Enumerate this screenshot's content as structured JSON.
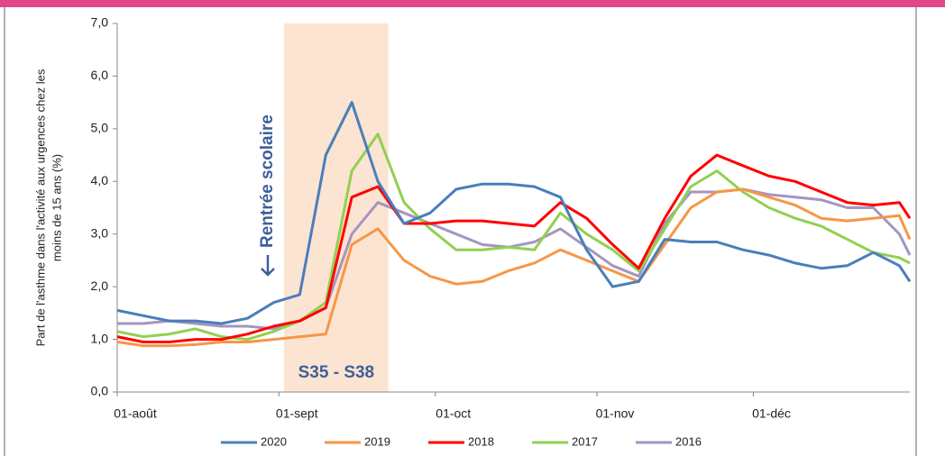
{
  "chart_data": {
    "type": "line",
    "ylabel": [
      "Part de l'asthme dans l'activité  aux urgences chez les",
      "moins de 15 ans (%)"
    ],
    "annotations": [
      "Rentrée scolaire",
      "S35 - S38"
    ],
    "shade": [
      32,
      52
    ],
    "x": [
      0,
      5,
      10,
      15,
      20,
      25,
      30,
      35,
      40,
      45,
      50,
      55,
      60,
      65,
      70,
      75,
      80,
      85,
      90,
      95,
      100,
      105,
      110,
      115,
      120,
      125,
      130,
      135,
      140,
      145,
      150,
      152
    ],
    "xlim": [
      0,
      152
    ],
    "xticks": [
      {
        "value": 0,
        "label": "01-août"
      },
      {
        "value": 31,
        "label": "01-sept"
      },
      {
        "value": 61,
        "label": "01-oct"
      },
      {
        "value": 92,
        "label": "01-nov"
      },
      {
        "value": 122,
        "label": "01-déc"
      }
    ],
    "ylim": [
      0,
      7
    ],
    "yticks": [
      {
        "value": 0,
        "label": "0,0"
      },
      {
        "value": 1,
        "label": "1,0"
      },
      {
        "value": 2,
        "label": "2,0"
      },
      {
        "value": 3,
        "label": "3,0"
      },
      {
        "value": 4,
        "label": "4,0"
      },
      {
        "value": 5,
        "label": "5,0"
      },
      {
        "value": 6,
        "label": "6,0"
      },
      {
        "value": 7,
        "label": "7,0"
      }
    ],
    "series": [
      {
        "name": "2020",
        "color": "#4a7ebb",
        "values": [
          1.55,
          1.45,
          1.35,
          1.35,
          1.3,
          1.4,
          1.7,
          1.85,
          4.5,
          5.5,
          4.0,
          3.2,
          3.4,
          3.85,
          3.95,
          3.95,
          3.9,
          3.7,
          2.7,
          2.0,
          2.1,
          2.9,
          2.85,
          2.85,
          2.7,
          2.6,
          2.45,
          2.35,
          2.4,
          2.65,
          2.4,
          2.1
        ]
      },
      {
        "name": "2019",
        "color": "#f79646",
        "values": [
          0.95,
          0.88,
          0.88,
          0.9,
          0.95,
          0.95,
          1.0,
          1.05,
          1.1,
          2.8,
          3.1,
          2.5,
          2.2,
          2.05,
          2.1,
          2.3,
          2.45,
          2.7,
          2.5,
          2.3,
          2.1,
          2.8,
          3.5,
          3.8,
          3.85,
          3.7,
          3.55,
          3.3,
          3.25,
          3.3,
          3.35,
          2.9
        ]
      },
      {
        "name": "2018",
        "color": "#ff0000",
        "values": [
          1.05,
          0.95,
          0.95,
          1.0,
          1.0,
          1.1,
          1.25,
          1.35,
          1.6,
          3.7,
          3.9,
          3.2,
          3.2,
          3.25,
          3.25,
          3.2,
          3.15,
          3.6,
          3.3,
          2.8,
          2.35,
          3.3,
          4.1,
          4.5,
          4.3,
          4.1,
          4.0,
          3.8,
          3.6,
          3.55,
          3.6,
          3.3
        ]
      },
      {
        "name": "2017",
        "color": "#92d050",
        "values": [
          1.15,
          1.05,
          1.1,
          1.2,
          1.05,
          1.0,
          1.15,
          1.35,
          1.7,
          4.2,
          4.9,
          3.6,
          3.1,
          2.7,
          2.7,
          2.75,
          2.7,
          3.4,
          3.0,
          2.7,
          2.3,
          3.1,
          3.9,
          4.2,
          3.8,
          3.5,
          3.3,
          3.15,
          2.9,
          2.65,
          2.55,
          2.45
        ]
      },
      {
        "name": "2016",
        "color": "#a495c0",
        "values": [
          1.3,
          1.3,
          1.35,
          1.3,
          1.25,
          1.25,
          1.2,
          1.35,
          1.6,
          3.0,
          3.6,
          3.4,
          3.2,
          3.0,
          2.8,
          2.75,
          2.85,
          3.1,
          2.75,
          2.4,
          2.2,
          3.2,
          3.8,
          3.8,
          3.85,
          3.75,
          3.7,
          3.65,
          3.5,
          3.5,
          3.0,
          2.6
        ]
      }
    ]
  }
}
